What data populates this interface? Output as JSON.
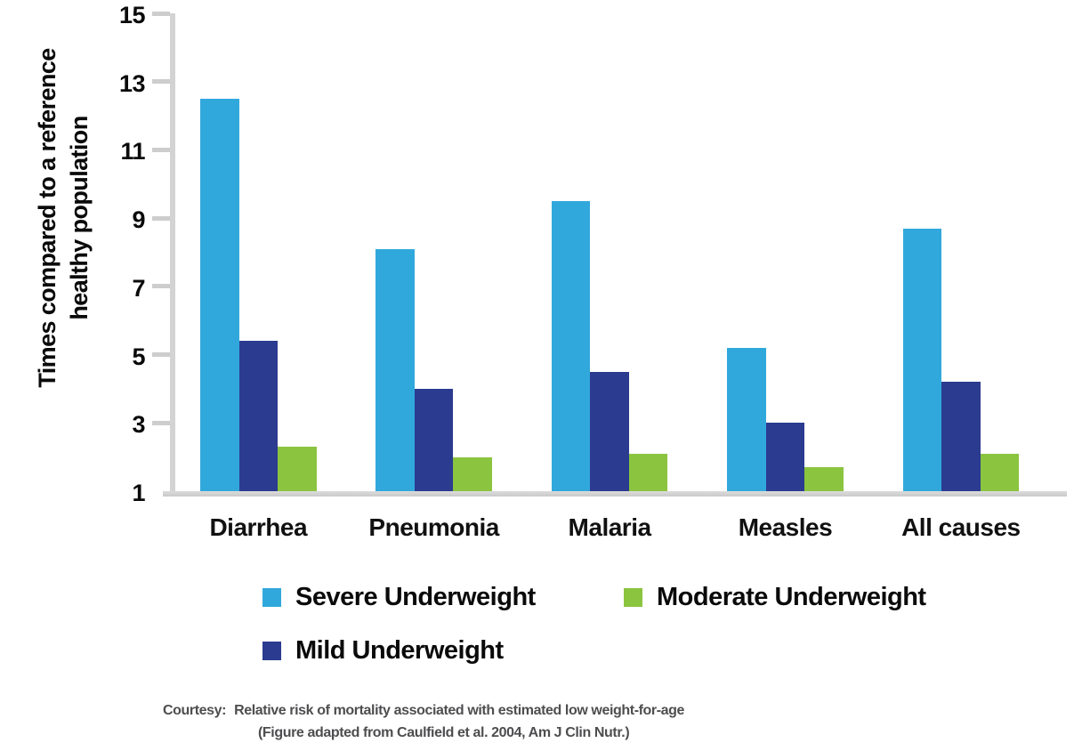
{
  "figure": {
    "y_axis_title_line1": "Times compared to a reference",
    "y_axis_title_line2": "healthy population"
  },
  "chart_data": {
    "type": "bar",
    "title": "",
    "xlabel": "",
    "ylabel": "Times compared to a reference healthy population",
    "categories": [
      "Diarrhea",
      "Pneumonia",
      "Malaria",
      "Measles",
      "All causes"
    ],
    "series": [
      {
        "name": "Severe Underweight",
        "color": "#31A8DC",
        "values": [
          12.5,
          8.1,
          9.5,
          5.2,
          8.7
        ]
      },
      {
        "name": "Mild Underweight",
        "color": "#2B3B8F",
        "values": [
          5.4,
          4.0,
          4.5,
          3.0,
          4.2
        ]
      },
      {
        "name": "Moderate Underweight",
        "color": "#8BC43F",
        "values": [
          2.3,
          2.0,
          2.1,
          1.7,
          2.1
        ]
      }
    ],
    "ylim": [
      1,
      15
    ],
    "y_ticks": [
      15,
      13,
      11,
      9,
      7,
      5,
      3,
      1
    ],
    "grid": false,
    "legend_position": "bottom"
  },
  "legend": {
    "items": [
      {
        "label": "Severe Underweight",
        "color": "#31A8DC",
        "row": 1
      },
      {
        "label": "Moderate Underweight",
        "color": "#8BC43F",
        "row": 1
      },
      {
        "label": "Mild Underweight",
        "color": "#2B3B8F",
        "row": 2
      }
    ]
  },
  "caption": {
    "prefix": "Courtesy:",
    "line1": "Relative risk of mortality associated with estimated low weight-for-age",
    "line2": "(Figure adapted from Caulfield et al. 2004, Am J Clin Nutr.)"
  },
  "colors": {
    "severe_blue": "#31A8DC",
    "mild_navy": "#2B3B8F",
    "moderate_green": "#8BC43F",
    "axis_gray": "#D3D3D3",
    "caption_gray": "#4E4E50",
    "text_black": "#0A0A0A"
  }
}
